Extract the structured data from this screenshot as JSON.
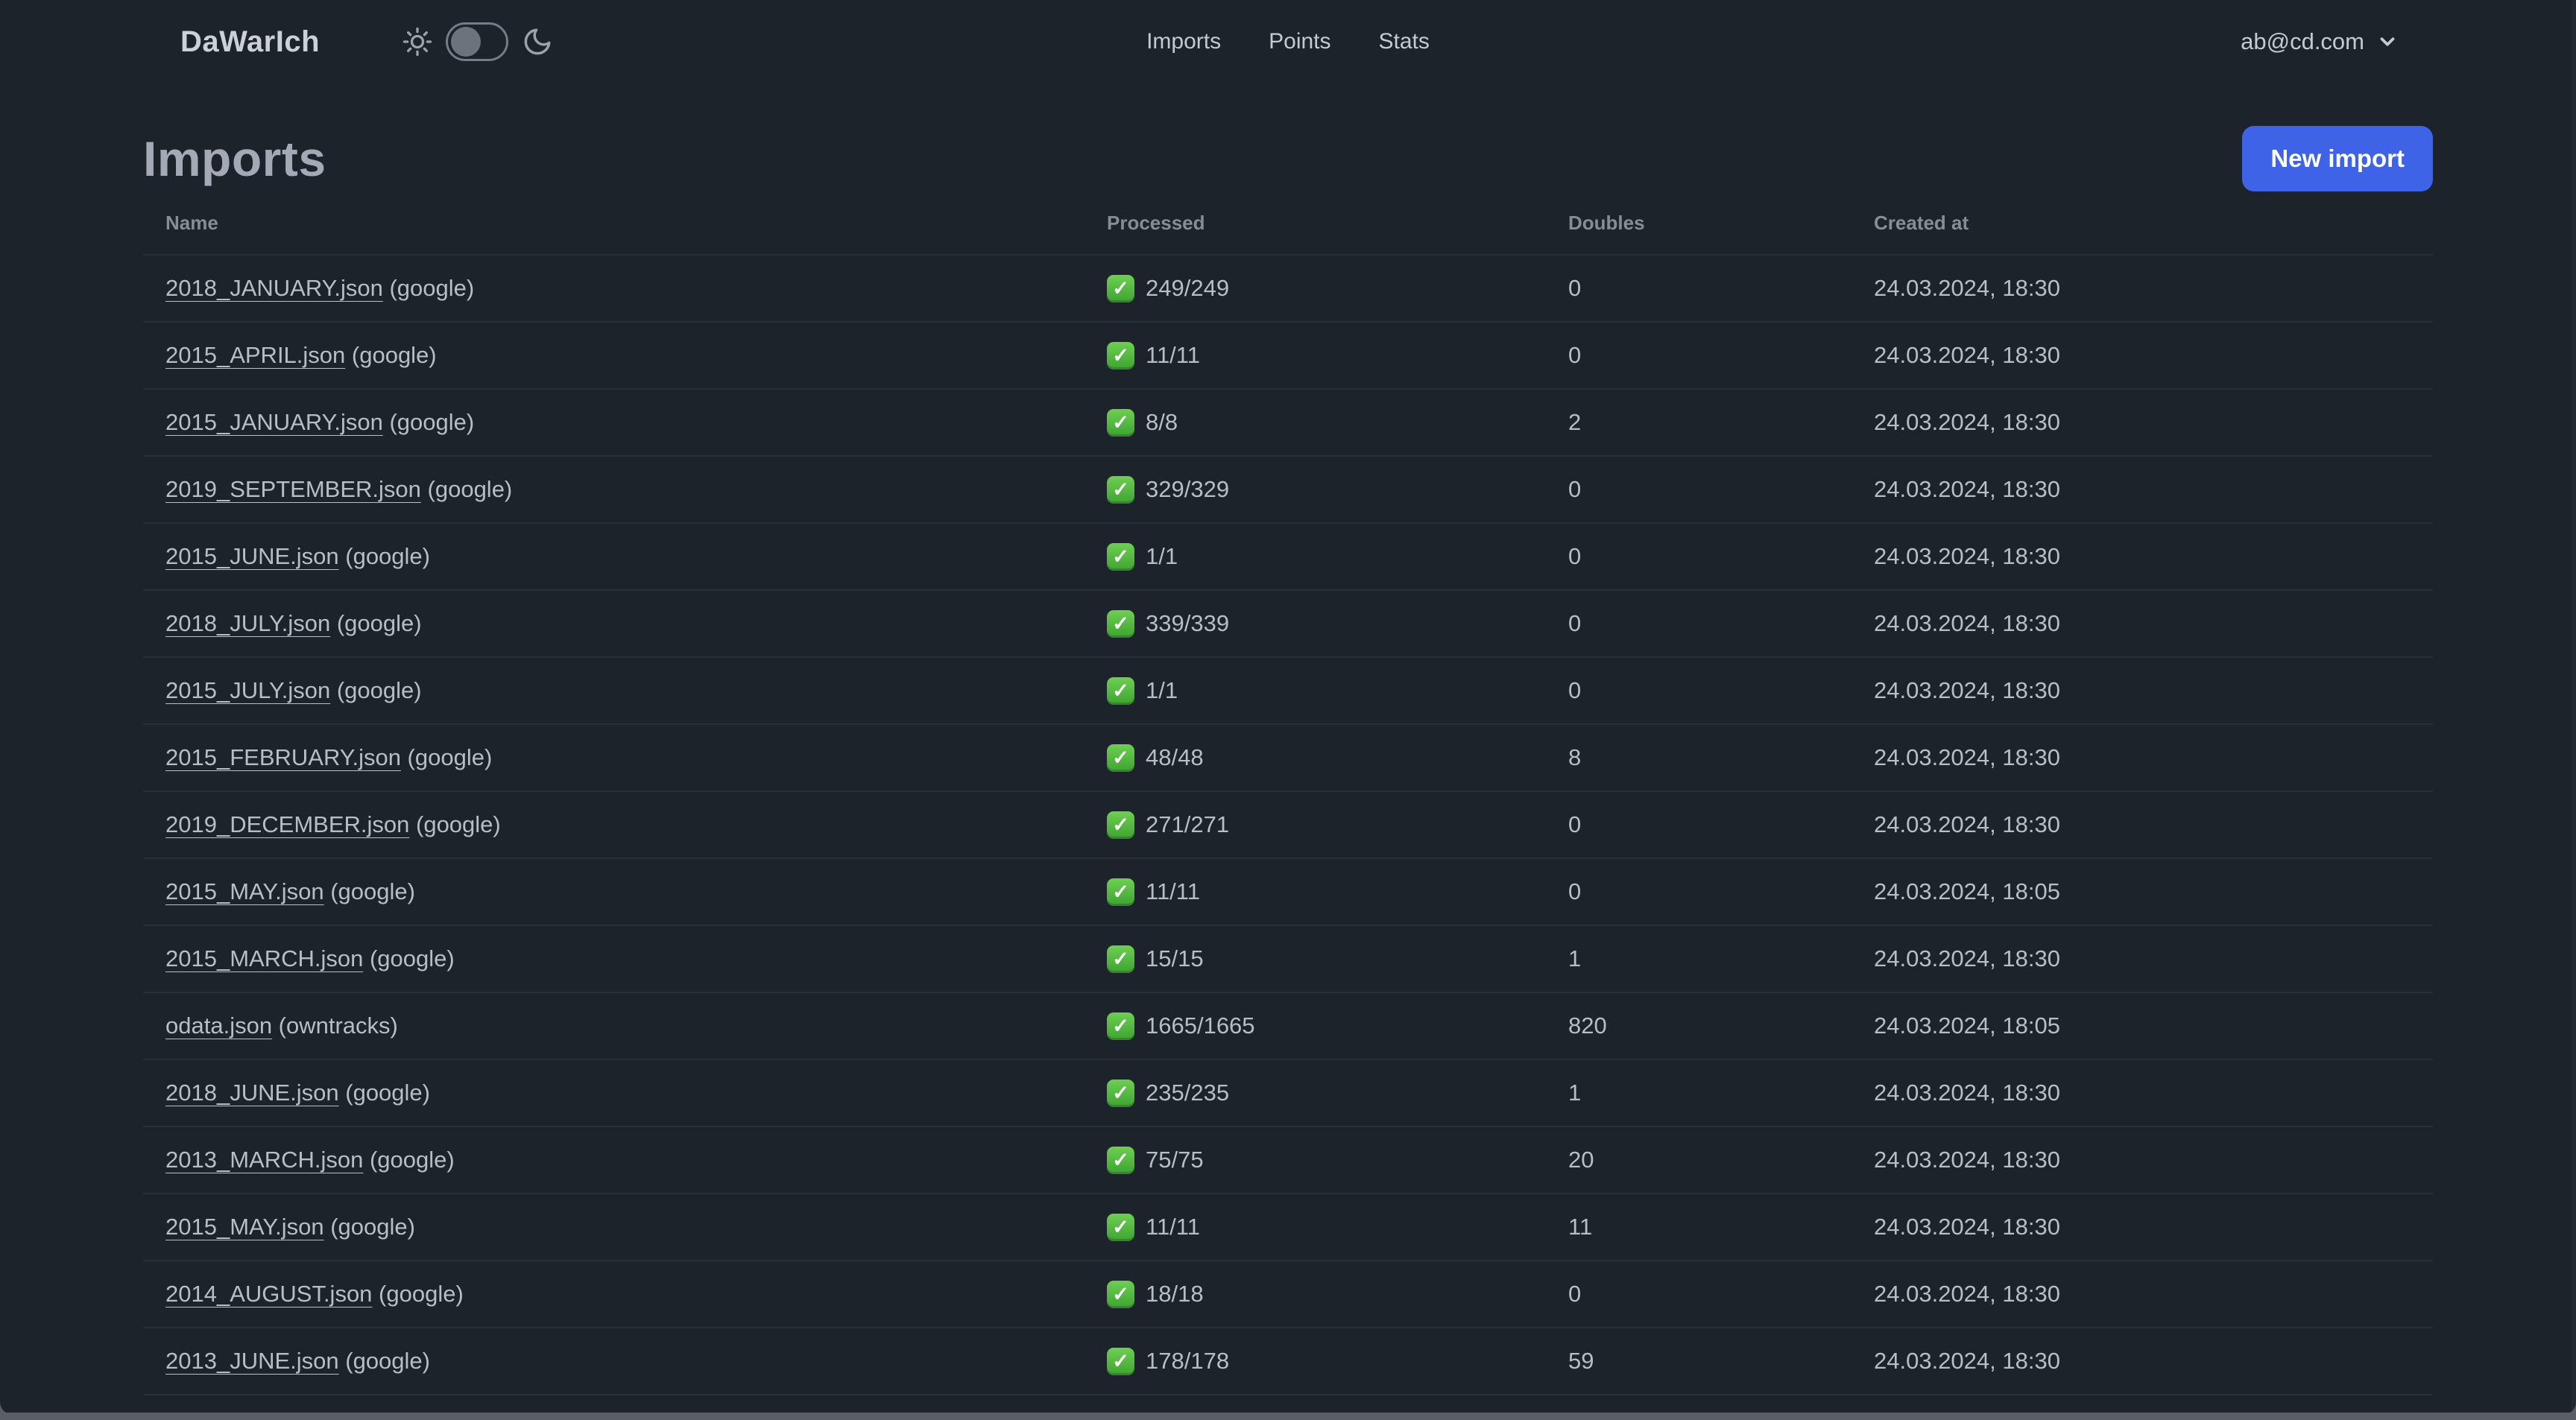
{
  "app": {
    "logo": "DaWarIch"
  },
  "nav": {
    "links": [
      "Imports",
      "Points",
      "Stats"
    ],
    "account_email": "ab@cd.com"
  },
  "theme_toggle": {
    "state": "light-knob-left",
    "icons": [
      "sun-icon",
      "moon-icon"
    ]
  },
  "page": {
    "title": "Imports",
    "new_import_label": "New import"
  },
  "table": {
    "headers": [
      "Name",
      "Processed",
      "Doubles",
      "Created at"
    ],
    "rows": [
      {
        "name": "2018_JANUARY.json",
        "source": "(google)",
        "processed": "249/249",
        "doubles": "0",
        "created_at": "24.03.2024, 18:30"
      },
      {
        "name": "2015_APRIL.json",
        "source": "(google)",
        "processed": "11/11",
        "doubles": "0",
        "created_at": "24.03.2024, 18:30"
      },
      {
        "name": "2015_JANUARY.json",
        "source": "(google)",
        "processed": "8/8",
        "doubles": "2",
        "created_at": "24.03.2024, 18:30"
      },
      {
        "name": "2019_SEPTEMBER.json",
        "source": "(google)",
        "processed": "329/329",
        "doubles": "0",
        "created_at": "24.03.2024, 18:30"
      },
      {
        "name": "2015_JUNE.json",
        "source": "(google)",
        "processed": "1/1",
        "doubles": "0",
        "created_at": "24.03.2024, 18:30"
      },
      {
        "name": "2018_JULY.json",
        "source": "(google)",
        "processed": "339/339",
        "doubles": "0",
        "created_at": "24.03.2024, 18:30"
      },
      {
        "name": "2015_JULY.json",
        "source": "(google)",
        "processed": "1/1",
        "doubles": "0",
        "created_at": "24.03.2024, 18:30"
      },
      {
        "name": "2015_FEBRUARY.json",
        "source": "(google)",
        "processed": "48/48",
        "doubles": "8",
        "created_at": "24.03.2024, 18:30"
      },
      {
        "name": "2019_DECEMBER.json",
        "source": "(google)",
        "processed": "271/271",
        "doubles": "0",
        "created_at": "24.03.2024, 18:30"
      },
      {
        "name": "2015_MAY.json",
        "source": "(google)",
        "processed": "11/11",
        "doubles": "0",
        "created_at": "24.03.2024, 18:05"
      },
      {
        "name": "2015_MARCH.json",
        "source": "(google)",
        "processed": "15/15",
        "doubles": "1",
        "created_at": "24.03.2024, 18:30"
      },
      {
        "name": "odata.json",
        "source": "(owntracks)",
        "processed": "1665/1665",
        "doubles": "820",
        "created_at": "24.03.2024, 18:05"
      },
      {
        "name": "2018_JUNE.json",
        "source": "(google)",
        "processed": "235/235",
        "doubles": "1",
        "created_at": "24.03.2024, 18:30"
      },
      {
        "name": "2013_MARCH.json",
        "source": "(google)",
        "processed": "75/75",
        "doubles": "20",
        "created_at": "24.03.2024, 18:30"
      },
      {
        "name": "2015_MAY.json",
        "source": "(google)",
        "processed": "11/11",
        "doubles": "11",
        "created_at": "24.03.2024, 18:30"
      },
      {
        "name": "2014_AUGUST.json",
        "source": "(google)",
        "processed": "18/18",
        "doubles": "0",
        "created_at": "24.03.2024, 18:30"
      },
      {
        "name": "2013_JUNE.json",
        "source": "(google)",
        "processed": "178/178",
        "doubles": "59",
        "created_at": "24.03.2024, 18:30"
      }
    ],
    "partial_row_visible": true,
    "status_icon": {
      "name": "check-icon",
      "glyph": "✓"
    }
  },
  "colors": {
    "background": "#1d232a",
    "primary_button": "#3e63e6",
    "check_green": "#4cb93c",
    "separator": "#2a3039",
    "text": "#b8bec6"
  }
}
